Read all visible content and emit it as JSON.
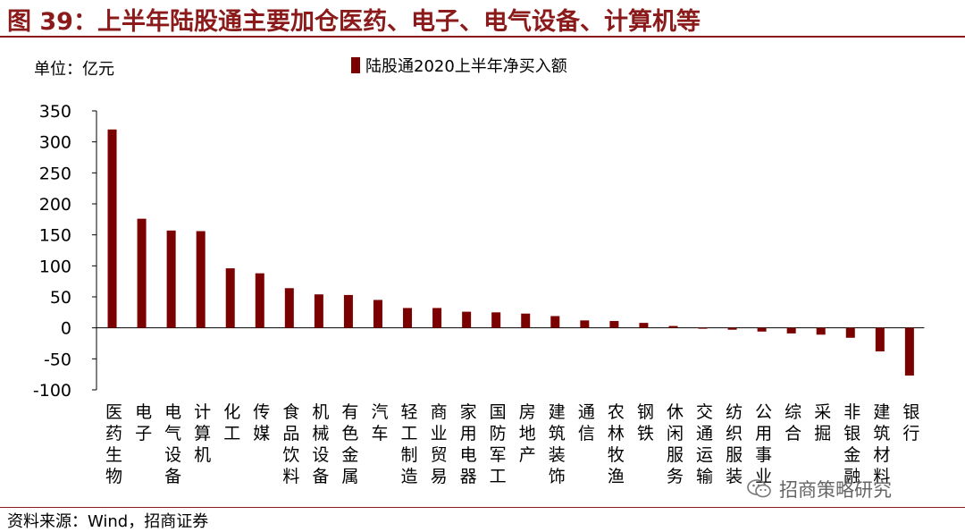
{
  "title": "图 39：上半年陆股通主要加仓医药、电子、电气设备、计算机等",
  "unit": "单位：亿元",
  "source": "资料来源：Wind，招商证券",
  "watermark": "招商策略研究",
  "colors": {
    "bar": "#7b0000",
    "title": "#8b1a1a",
    "axis": "#000000"
  },
  "chart_data": {
    "type": "bar",
    "categories": [
      "医药生物",
      "电子",
      "电气设备",
      "计算机",
      "化工",
      "传媒",
      "食品饮料",
      "机械设备",
      "有色金属",
      "汽车",
      "轻工制造",
      "商业贸易",
      "家用电器",
      "国防军工",
      "房地产",
      "建筑装饰",
      "通信",
      "农林牧渔",
      "钢铁",
      "休闲服务",
      "交通运输",
      "纺织服装",
      "公用事业",
      "综合",
      "采掘",
      "非银金融",
      "建筑材料",
      "银行"
    ],
    "series": [
      {
        "name": "陆股通2020上半年净买入额",
        "values": [
          320,
          176,
          157,
          156,
          96,
          88,
          64,
          54,
          53,
          45,
          32,
          32,
          26,
          25,
          23,
          19,
          12,
          11,
          8,
          3,
          -1,
          -3,
          -6,
          -9,
          -11,
          -16,
          -38,
          -77
        ]
      }
    ],
    "yticks": [
      350,
      300,
      250,
      200,
      150,
      100,
      50,
      0,
      -50,
      -100
    ],
    "ylim": [
      -100,
      350
    ],
    "legend_position": "top",
    "grid": false
  }
}
